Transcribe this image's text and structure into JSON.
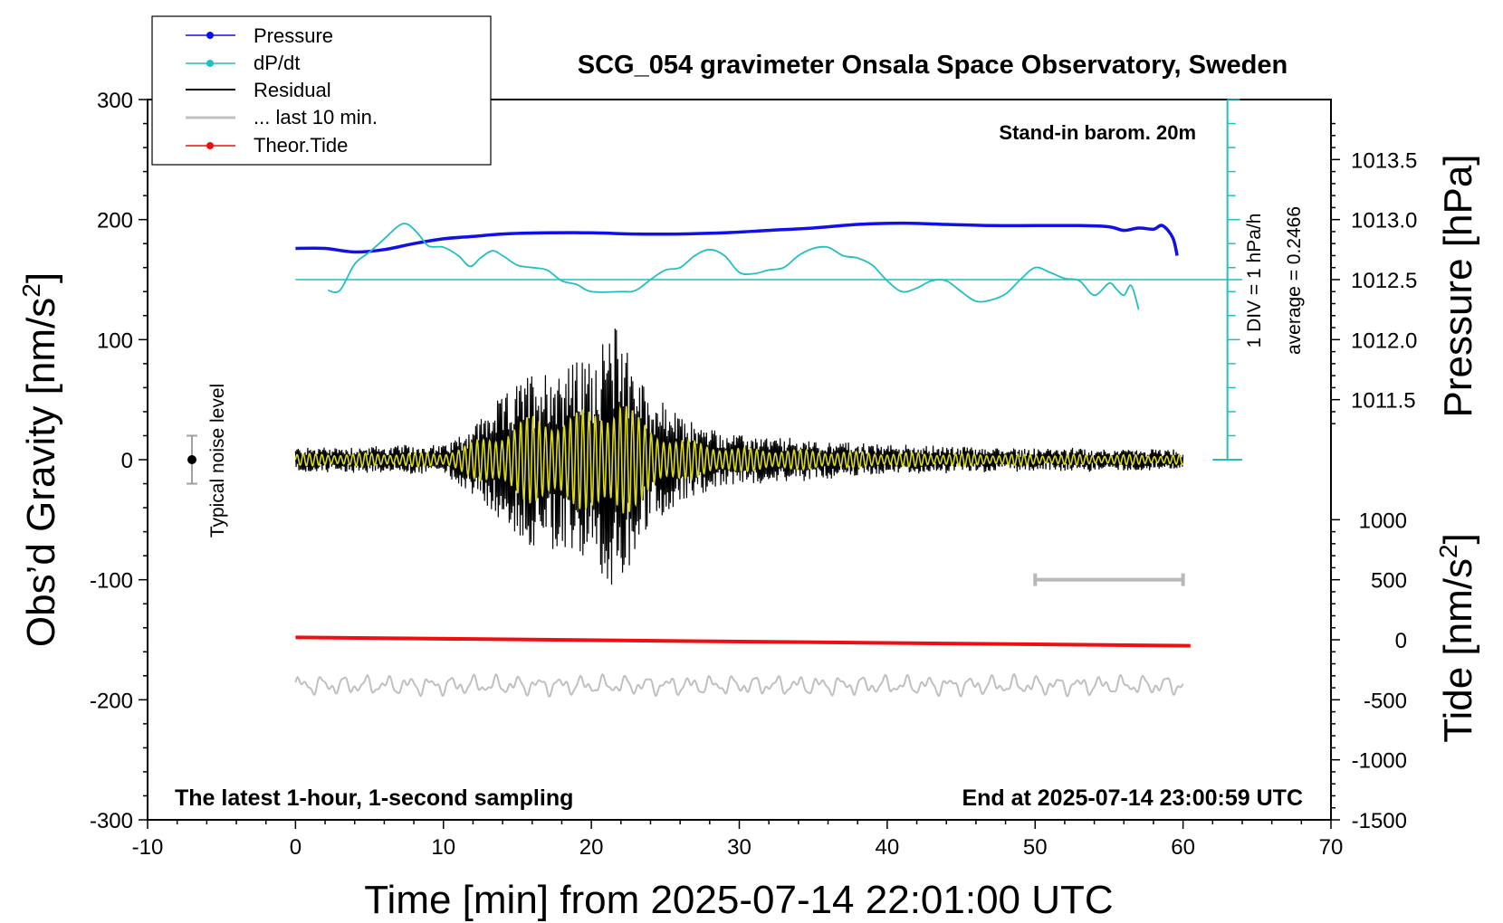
{
  "chart_data": {
    "type": "line",
    "title": "SCG_054 gravimeter Onsala Space Observatory, Sweden",
    "xlabel": "Time [min] from 2025-07-14 22:01:00 UTC",
    "ylabel_left": "Obs’d Gravity [nm/s",
    "ylabel_left_sup": "2",
    "ylabel_left_close": "]",
    "ylabel_right_pressure": "Pressure [hPa]",
    "ylabel_right_tide": "Tide [nm/s",
    "ylabel_right_tide_sup": "2",
    "ylabel_right_tide_close": "]",
    "xlim": [
      -10,
      70
    ],
    "ylim": [
      -300,
      300
    ],
    "x_ticks": [
      "-10",
      "0",
      "10",
      "20",
      "30",
      "40",
      "50",
      "60",
      "70"
    ],
    "y_ticks": [
      "300",
      "200",
      "100",
      "0",
      "-100",
      "-200",
      "-300"
    ],
    "pressure_ticks": [
      "1013.5",
      "1013.0",
      "1012.5",
      "1012.0",
      "1011.5"
    ],
    "tide_ticks": [
      "1000",
      "500",
      "0",
      "-500",
      "-1000",
      "-1500"
    ],
    "annotations": {
      "stand_in": "Stand-in barom. 20m",
      "dpdt_scale": "1 DIV = 1 hPa/h",
      "average": "average = 0.2466",
      "noise": "Typical noise level",
      "bottom_left": "The latest 1-hour, 1-second sampling",
      "bottom_right": "End at 2025-07-14 23:00:59 UTC"
    },
    "legend": [
      "Pressure",
      "dP/dt",
      "Residual",
      "... last 10 min.",
      "Theor.Tide"
    ],
    "colors": {
      "pressure": "#1010e8",
      "dpdt": "#20c0c0",
      "residual": "#000000",
      "last10": "#c0c0c0",
      "tide": "#ee1010",
      "filtered": "#d8d820"
    },
    "series": [
      {
        "name": "Pressure",
        "unit": "hPa",
        "points": [
          [
            0,
            1012.76
          ],
          [
            2,
            1012.76
          ],
          [
            4,
            1012.73
          ],
          [
            6,
            1012.75
          ],
          [
            8,
            1012.8
          ],
          [
            10,
            1012.84
          ],
          [
            12,
            1012.86
          ],
          [
            14,
            1012.88
          ],
          [
            17,
            1012.89
          ],
          [
            20,
            1012.89
          ],
          [
            23,
            1012.88
          ],
          [
            26,
            1012.88
          ],
          [
            29,
            1012.89
          ],
          [
            32,
            1012.91
          ],
          [
            35,
            1012.93
          ],
          [
            38,
            1012.96
          ],
          [
            41,
            1012.97
          ],
          [
            44,
            1012.96
          ],
          [
            47,
            1012.95
          ],
          [
            50,
            1012.95
          ],
          [
            53,
            1012.95
          ],
          [
            55,
            1012.94
          ],
          [
            56,
            1012.91
          ],
          [
            57,
            1012.93
          ],
          [
            58,
            1012.92
          ],
          [
            58.6,
            1012.95
          ],
          [
            59.3,
            1012.85
          ],
          [
            59.6,
            1012.7
          ]
        ]
      },
      {
        "name": "dP/dt",
        "unit": "gravity-axis units (1 DIV = 1 hPa/h)",
        "points": [
          [
            2.2,
            141
          ],
          [
            3,
            141
          ],
          [
            4,
            163
          ],
          [
            5,
            173
          ],
          [
            6,
            184
          ],
          [
            7,
            195
          ],
          [
            7.6,
            196
          ],
          [
            8.3,
            188
          ],
          [
            9,
            178
          ],
          [
            10,
            177
          ],
          [
            11,
            170
          ],
          [
            11.8,
            161
          ],
          [
            12.5,
            168
          ],
          [
            13.3,
            174
          ],
          [
            14,
            170
          ],
          [
            15,
            162
          ],
          [
            16,
            160
          ],
          [
            17,
            158
          ],
          [
            18,
            149
          ],
          [
            19,
            146
          ],
          [
            20,
            140
          ],
          [
            22,
            140
          ],
          [
            23,
            141
          ],
          [
            24,
            150
          ],
          [
            25,
            158
          ],
          [
            26,
            160
          ],
          [
            27,
            170
          ],
          [
            28,
            175
          ],
          [
            29,
            170
          ],
          [
            30,
            156
          ],
          [
            31,
            155
          ],
          [
            32,
            158
          ],
          [
            33,
            160
          ],
          [
            34,
            170
          ],
          [
            35,
            176
          ],
          [
            36,
            177
          ],
          [
            37,
            170
          ],
          [
            38,
            168
          ],
          [
            39,
            162
          ],
          [
            40,
            149
          ],
          [
            41,
            140
          ],
          [
            42,
            143
          ],
          [
            43,
            149
          ],
          [
            44,
            149
          ],
          [
            45,
            140
          ],
          [
            46,
            132
          ],
          [
            47,
            133
          ],
          [
            48,
            138
          ],
          [
            49,
            150
          ],
          [
            50,
            160
          ],
          [
            51,
            156
          ],
          [
            52,
            151
          ],
          [
            53,
            149
          ],
          [
            54,
            137
          ],
          [
            55,
            147
          ],
          [
            55.5,
            142
          ],
          [
            56,
            137
          ],
          [
            56.5,
            145
          ],
          [
            57,
            125
          ]
        ]
      },
      {
        "name": "Residual envelope",
        "unit": "nm/s²",
        "points": [
          [
            0,
            10
          ],
          [
            10,
            12
          ],
          [
            11,
            20
          ],
          [
            12,
            30
          ],
          [
            14,
            52
          ],
          [
            16,
            75
          ],
          [
            18,
            80
          ],
          [
            20,
            85
          ],
          [
            21,
            100
          ],
          [
            22,
            120
          ],
          [
            23,
            75
          ],
          [
            24,
            55
          ],
          [
            26,
            36
          ],
          [
            28,
            26
          ],
          [
            30,
            20
          ],
          [
            40,
            12
          ],
          [
            50,
            9
          ],
          [
            60,
            8
          ]
        ]
      },
      {
        "name": "Theor.Tide",
        "unit": "nm/s²",
        "points": [
          [
            0,
            20
          ],
          [
            60.5,
            -50
          ]
        ]
      },
      {
        "name": "... last 10 min.",
        "unit": "gravity-axis units",
        "baseline": -188,
        "amplitude": 7,
        "x_range": [
          0,
          60
        ]
      }
    ],
    "noise_bar": {
      "x": -7,
      "center": 0,
      "range": [
        -20,
        20
      ]
    },
    "last10_marker": {
      "range": [
        50,
        60
      ],
      "y": -100
    }
  }
}
